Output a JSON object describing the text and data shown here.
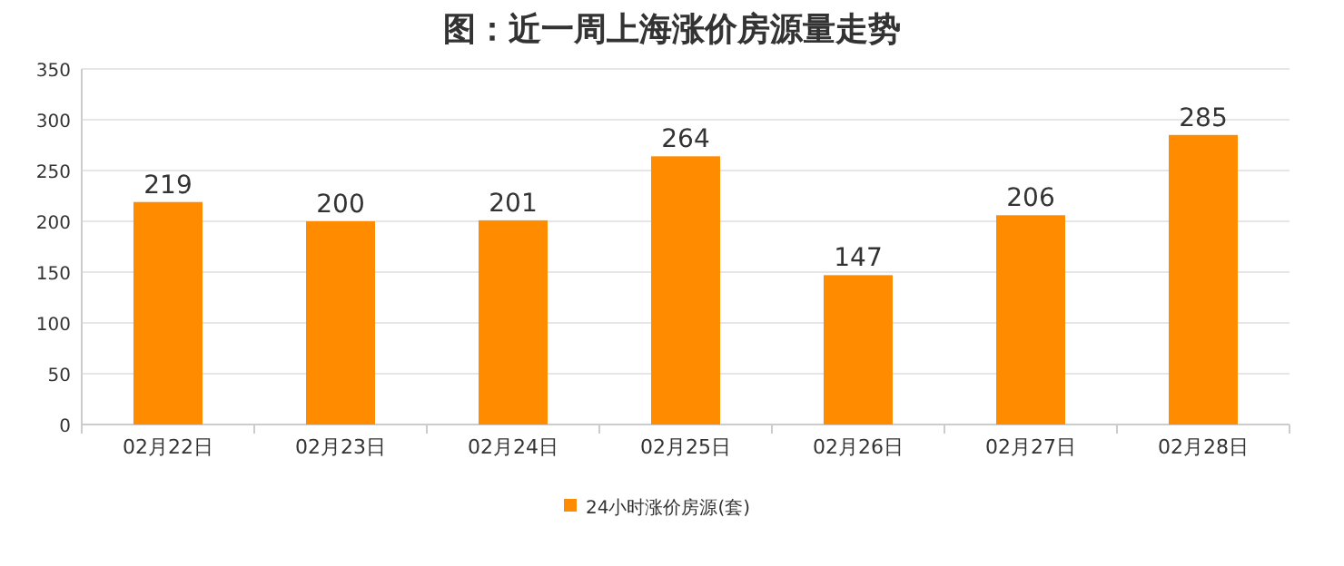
{
  "chart_data": {
    "type": "bar",
    "title": "图：近一周上海涨价房源量走势",
    "categories": [
      "02月22日",
      "02月23日",
      "02月24日",
      "02月25日",
      "02月26日",
      "02月27日",
      "02月28日"
    ],
    "series": [
      {
        "name": "24小时涨价房源(套)",
        "color": "#ff8c00",
        "values": [
          219,
          200,
          201,
          264,
          147,
          206,
          285
        ]
      }
    ],
    "ylim": [
      0,
      350
    ],
    "yticks": [
      0,
      50,
      100,
      150,
      200,
      250,
      300,
      350
    ],
    "grid": "y",
    "legend": "bottom",
    "data_labels": true
  }
}
